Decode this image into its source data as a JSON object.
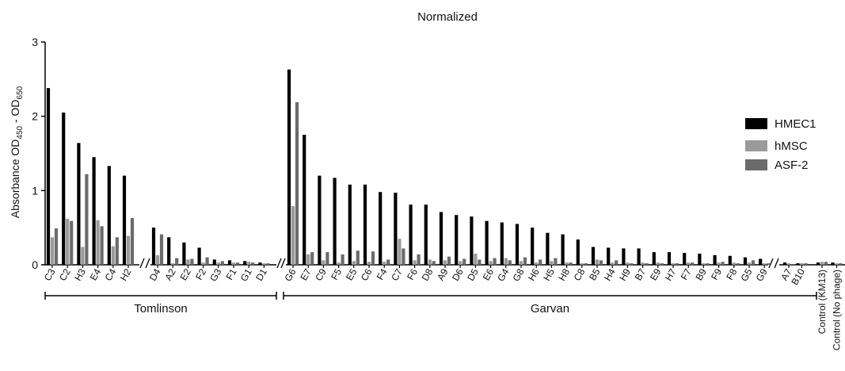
{
  "chart_data": {
    "type": "bar",
    "title": "Normalized",
    "ylabel": {
      "main": "Absorbance OD",
      "sub1": "450",
      "mid": " - OD",
      "sub2": "650"
    },
    "ylim": [
      0,
      3
    ],
    "yticks": [
      "0",
      "1",
      "2",
      "3"
    ],
    "grid": false,
    "legend_position": "right",
    "series": [
      {
        "name": "HMEC1",
        "color": "#000000"
      },
      {
        "name": "hMSC",
        "color": "#9a9a9a"
      },
      {
        "name": "ASF-2",
        "color": "#6b6b6b"
      }
    ],
    "segments": [
      {
        "group": "Tomlinson",
        "categories": [
          "C3",
          "C2",
          "H3",
          "E4",
          "C4",
          "H2"
        ],
        "values": [
          [
            2.38,
            0.37,
            0.49
          ],
          [
            2.05,
            0.62,
            0.59
          ],
          [
            1.64,
            0.24,
            1.22
          ],
          [
            1.45,
            0.6,
            0.52
          ],
          [
            1.33,
            0.25,
            0.37
          ],
          [
            1.2,
            0.39,
            0.63
          ]
        ]
      },
      {
        "group": "Tomlinson",
        "categories": [
          "D4",
          "A2",
          "E2",
          "F2",
          "G3",
          "F1",
          "G1",
          "D1"
        ],
        "values": [
          [
            0.5,
            0.13,
            0.41
          ],
          [
            0.37,
            0.02,
            0.09
          ],
          [
            0.3,
            0.07,
            0.08
          ],
          [
            0.23,
            0.03,
            0.1
          ],
          [
            0.07,
            0.03,
            0.05
          ],
          [
            0.06,
            0.03,
            0.03
          ],
          [
            0.05,
            0.04,
            0.03
          ],
          [
            0.03,
            0.02,
            0.02
          ]
        ]
      },
      {
        "group": "Garvan",
        "categories": [
          "G6",
          "E7",
          "C9",
          "F5",
          "E5",
          "C6",
          "F4",
          "C7",
          "F6",
          "D8",
          "A9",
          "D6",
          "D5",
          "E6",
          "G4",
          "G8",
          "H6",
          "H5",
          "H8",
          "C8",
          "B5",
          "H4",
          "H9",
          "B7",
          "E9",
          "H7",
          "F7",
          "B9",
          "F9",
          "F8",
          "G5",
          "G9"
        ],
        "values": [
          [
            2.63,
            0.79,
            2.19
          ],
          [
            1.75,
            0.14,
            0.17
          ],
          [
            1.2,
            0.06,
            0.17
          ],
          [
            1.17,
            0.03,
            0.14
          ],
          [
            1.08,
            0.05,
            0.19
          ],
          [
            1.08,
            0.04,
            0.18
          ],
          [
            0.98,
            0.04,
            0.07
          ],
          [
            0.97,
            0.35,
            0.22
          ],
          [
            0.81,
            0.06,
            0.14
          ],
          [
            0.81,
            0.07,
            0.05
          ],
          [
            0.71,
            0.06,
            0.11
          ],
          [
            0.67,
            0.05,
            0.08
          ],
          [
            0.65,
            0.15,
            0.07
          ],
          [
            0.59,
            0.05,
            0.09
          ],
          [
            0.57,
            0.09,
            0.06
          ],
          [
            0.55,
            0.05,
            0.1
          ],
          [
            0.5,
            0.03,
            0.07
          ],
          [
            0.43,
            0.05,
            0.09
          ],
          [
            0.41,
            0.03,
            0.03
          ],
          [
            0.34,
            0.02,
            0.02
          ],
          [
            0.24,
            0.07,
            0.06
          ],
          [
            0.23,
            0.03,
            0.06
          ],
          [
            0.22,
            0.03,
            0.02
          ],
          [
            0.22,
            0.03,
            0.02
          ],
          [
            0.17,
            0.03,
            0.02
          ],
          [
            0.17,
            0.02,
            0.02
          ],
          [
            0.16,
            0.03,
            0.03
          ],
          [
            0.15,
            0.02,
            0.02
          ],
          [
            0.13,
            0.03,
            0.04
          ],
          [
            0.12,
            0.03,
            0.02
          ],
          [
            0.1,
            0.03,
            0.06
          ],
          [
            0.08,
            0.02,
            0.02
          ]
        ]
      },
      {
        "group": "",
        "categories": [
          "A7",
          "B10"
        ],
        "values": [
          [
            0.03,
            0.02,
            0.01
          ],
          [
            0.02,
            0.02,
            0.02
          ]
        ]
      },
      {
        "group": "",
        "categories": [
          "Control (KM13)",
          "Control (No phage)"
        ],
        "values": [
          [
            0.03,
            0.04,
            0.04
          ],
          [
            0.03,
            0.02,
            0.02
          ]
        ]
      }
    ],
    "groups": [
      "Tomlinson",
      "Garvan"
    ]
  }
}
